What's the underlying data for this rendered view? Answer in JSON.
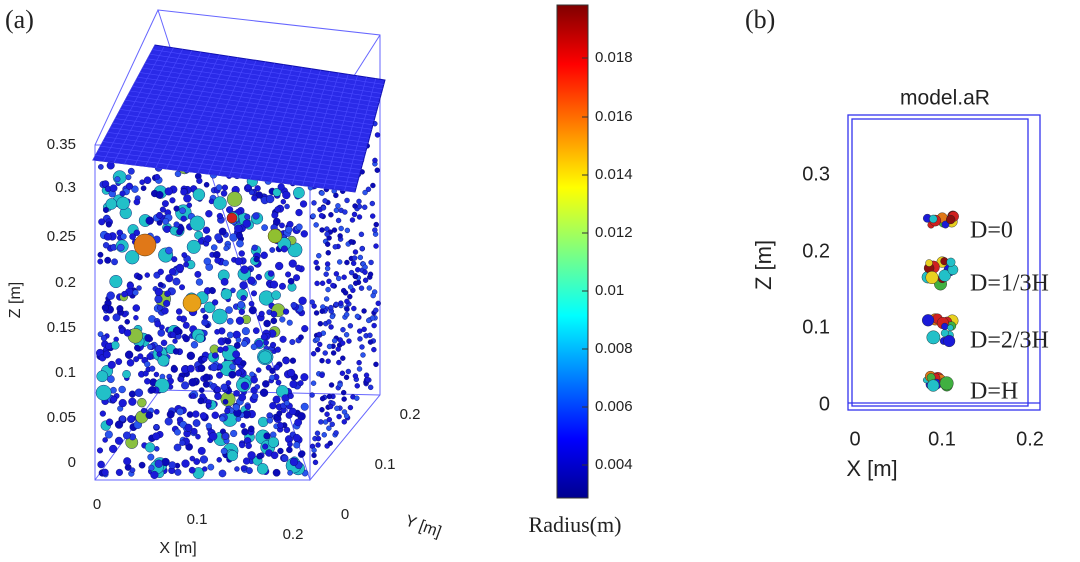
{
  "panel_a": {
    "label": "(a)",
    "z_axis": {
      "label": "Z [m]",
      "ticks": [
        0.35,
        0.3,
        0.25,
        0.2,
        0.15,
        0.1,
        0.05,
        0
      ]
    },
    "x_axis": {
      "label": "X [m]",
      "ticks": [
        0,
        0.1,
        0.2
      ]
    },
    "y_axis": {
      "label": "Y [m]",
      "ticks": [
        0,
        0.1,
        0.2
      ]
    },
    "colorbar": {
      "title": "Radius(m)",
      "ticks": [
        0.018,
        0.016,
        0.014,
        0.012,
        0.01,
        0.008,
        0.006,
        0.004
      ]
    }
  },
  "panel_b": {
    "label": "(b)",
    "title": "model.aR",
    "z_axis": {
      "label": "Z [m]",
      "ticks": [
        0.3,
        0.2,
        0.1,
        0
      ]
    },
    "x_axis": {
      "label": "X [m]",
      "ticks": [
        0,
        0.1,
        0.2
      ]
    },
    "annotations": [
      "D=0",
      "D=1/3H",
      "D=2/3H",
      "D=H"
    ]
  }
}
